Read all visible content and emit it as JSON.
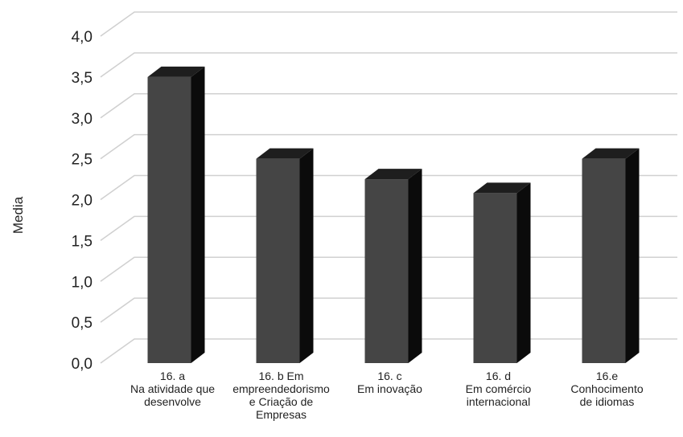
{
  "chart_data": {
    "type": "bar",
    "ylabel": "Media",
    "xlabel": "",
    "ylim": [
      0,
      4.0
    ],
    "yticks": [
      "0,0",
      "0,5",
      "1,0",
      "1,5",
      "2,0",
      "2,5",
      "3,0",
      "3,5",
      "4,0"
    ],
    "categories": [
      [
        "16. a",
        "Na atividade que",
        "desenvolve"
      ],
      [
        "16. b Em",
        "empreendedorismo",
        "e Criação de",
        "Empresas"
      ],
      [
        "16. c",
        "Em inovação"
      ],
      [
        "16. d",
        "Em comércio",
        "internacional"
      ],
      [
        "16.e",
        "Conhocimento",
        "de idiomas"
      ]
    ],
    "values": [
      3.5,
      2.5,
      2.25,
      2.08,
      2.5
    ],
    "grid": true,
    "style": "3d-column",
    "colors": {
      "front": "#454545",
      "side": "#0b0b0b",
      "top": "#1e1e1e",
      "grid": "#d0d0d0"
    }
  }
}
